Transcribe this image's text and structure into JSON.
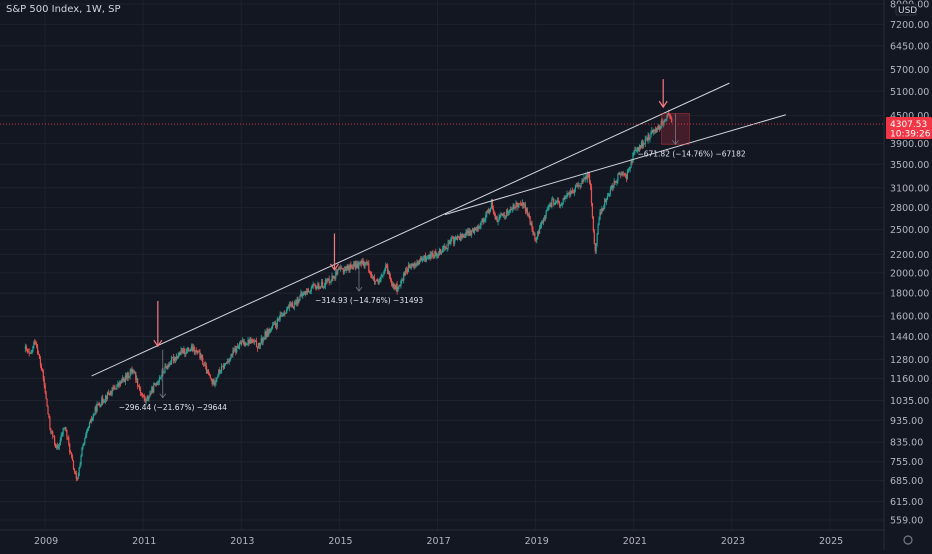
{
  "header": {
    "title": "S&P 500 Index, 1W, SP"
  },
  "colors": {
    "background": "#131722",
    "up": "#26a69a",
    "down": "#ef5350",
    "trendline": "#d1d4dc",
    "arrow": "#f77c80",
    "price_tag": "#f23645"
  },
  "chart_data": {
    "type": "candlestick",
    "title": "S&P 500 Index, 1W, SP",
    "currency": "USD",
    "y_scale": "log",
    "ylim": [
      540,
      8000
    ],
    "xlim": [
      2008.6,
      2026.0
    ],
    "x_ticks": [
      "2009",
      "2011",
      "2013",
      "2015",
      "2017",
      "2019",
      "2021",
      "2023",
      "2025"
    ],
    "y_ticks": [
      "8000.00",
      "7200.00",
      "6450.00",
      "5700.00",
      "5100.00",
      "4500.00",
      "3900.00",
      "3500.00",
      "3100.00",
      "2800.00",
      "2500.00",
      "2200.00",
      "2000.00",
      "1800.00",
      "1600.00",
      "1440.00",
      "1280.00",
      "1160.00",
      "1035.00",
      "935.00",
      "835.00",
      "755.00",
      "685.00",
      "615.00",
      "559.00"
    ],
    "current_price": {
      "value": "4307.53",
      "countdown": "10:39:26"
    },
    "price_path": [
      {
        "x": 2008.6,
        "y": 1350
      },
      {
        "x": 2008.7,
        "y": 1300
      },
      {
        "x": 2008.8,
        "y": 1420
      },
      {
        "x": 2008.9,
        "y": 1260
      },
      {
        "x": 2008.97,
        "y": 1150
      },
      {
        "x": 2009.1,
        "y": 900
      },
      {
        "x": 2009.25,
        "y": 800
      },
      {
        "x": 2009.4,
        "y": 910
      },
      {
        "x": 2009.55,
        "y": 760
      },
      {
        "x": 2009.65,
        "y": 676
      },
      {
        "x": 2009.75,
        "y": 800
      },
      {
        "x": 2009.9,
        "y": 910
      },
      {
        "x": 2010.05,
        "y": 1000
      },
      {
        "x": 2010.25,
        "y": 1060
      },
      {
        "x": 2010.45,
        "y": 1110
      },
      {
        "x": 2010.6,
        "y": 1150
      },
      {
        "x": 2010.8,
        "y": 1215
      },
      {
        "x": 2010.95,
        "y": 1080
      },
      {
        "x": 2011.05,
        "y": 1030
      },
      {
        "x": 2011.2,
        "y": 1100
      },
      {
        "x": 2011.4,
        "y": 1200
      },
      {
        "x": 2011.6,
        "y": 1280
      },
      {
        "x": 2011.8,
        "y": 1330
      },
      {
        "x": 2012.0,
        "y": 1350
      },
      {
        "x": 2012.15,
        "y": 1310
      },
      {
        "x": 2012.3,
        "y": 1200
      },
      {
        "x": 2012.42,
        "y": 1130
      },
      {
        "x": 2012.55,
        "y": 1200
      },
      {
        "x": 2012.7,
        "y": 1260
      },
      {
        "x": 2012.85,
        "y": 1330
      },
      {
        "x": 2013.0,
        "y": 1390
      },
      {
        "x": 2013.2,
        "y": 1410
      },
      {
        "x": 2013.35,
        "y": 1370
      },
      {
        "x": 2013.5,
        "y": 1460
      },
      {
        "x": 2013.7,
        "y": 1530
      },
      {
        "x": 2013.9,
        "y": 1650
      },
      {
        "x": 2014.05,
        "y": 1690
      },
      {
        "x": 2014.25,
        "y": 1790
      },
      {
        "x": 2014.45,
        "y": 1850
      },
      {
        "x": 2014.65,
        "y": 1880
      },
      {
        "x": 2014.85,
        "y": 1950
      },
      {
        "x": 2015.0,
        "y": 2020
      },
      {
        "x": 2015.2,
        "y": 2060
      },
      {
        "x": 2015.4,
        "y": 2090
      },
      {
        "x": 2015.55,
        "y": 2110
      },
      {
        "x": 2015.7,
        "y": 1920
      },
      {
        "x": 2015.8,
        "y": 1880
      },
      {
        "x": 2015.95,
        "y": 2060
      },
      {
        "x": 2016.08,
        "y": 1900
      },
      {
        "x": 2016.2,
        "y": 1830
      },
      {
        "x": 2016.35,
        "y": 2030
      },
      {
        "x": 2016.55,
        "y": 2090
      },
      {
        "x": 2016.75,
        "y": 2160
      },
      {
        "x": 2016.95,
        "y": 2200
      },
      {
        "x": 2017.1,
        "y": 2260
      },
      {
        "x": 2017.3,
        "y": 2360
      },
      {
        "x": 2017.5,
        "y": 2420
      },
      {
        "x": 2017.7,
        "y": 2470
      },
      {
        "x": 2017.9,
        "y": 2600
      },
      {
        "x": 2018.05,
        "y": 2750
      },
      {
        "x": 2018.1,
        "y": 2870
      },
      {
        "x": 2018.2,
        "y": 2620
      },
      {
        "x": 2018.35,
        "y": 2700
      },
      {
        "x": 2018.55,
        "y": 2800
      },
      {
        "x": 2018.7,
        "y": 2890
      },
      {
        "x": 2018.82,
        "y": 2750
      },
      {
        "x": 2018.93,
        "y": 2500
      },
      {
        "x": 2019.0,
        "y": 2360
      },
      {
        "x": 2019.15,
        "y": 2640
      },
      {
        "x": 2019.35,
        "y": 2900
      },
      {
        "x": 2019.5,
        "y": 2840
      },
      {
        "x": 2019.65,
        "y": 2990
      },
      {
        "x": 2019.8,
        "y": 3080
      },
      {
        "x": 2020.0,
        "y": 3230
      },
      {
        "x": 2020.08,
        "y": 3350
      },
      {
        "x": 2020.12,
        "y": 3100
      },
      {
        "x": 2020.18,
        "y": 2450
      },
      {
        "x": 2020.22,
        "y": 2230
      },
      {
        "x": 2020.3,
        "y": 2700
      },
      {
        "x": 2020.45,
        "y": 2950
      },
      {
        "x": 2020.6,
        "y": 3200
      },
      {
        "x": 2020.75,
        "y": 3350
      },
      {
        "x": 2020.85,
        "y": 3280
      },
      {
        "x": 2021.0,
        "y": 3700
      },
      {
        "x": 2021.2,
        "y": 3900
      },
      {
        "x": 2021.4,
        "y": 4150
      },
      {
        "x": 2021.55,
        "y": 4300
      },
      {
        "x": 2021.68,
        "y": 4480
      },
      {
        "x": 2021.72,
        "y": 4530
      },
      {
        "x": 2021.78,
        "y": 4307
      }
    ],
    "trend_lines": [
      {
        "from": {
          "x": 2009.95,
          "y": 1175
        },
        "to": {
          "x": 2022.95,
          "y": 5320
        }
      },
      {
        "from": {
          "x": 2017.15,
          "y": 2700
        },
        "to": {
          "x": 2024.1,
          "y": 4520
        }
      }
    ],
    "arrows": [
      {
        "x": 2011.3,
        "y_top": 1730,
        "y_tip": 1370
      },
      {
        "x": 2014.9,
        "y_top": 2450,
        "y_tip": 2030
      },
      {
        "x": 2021.6,
        "y_top": 5430,
        "y_tip": 4700
      }
    ],
    "measurements": [
      {
        "x": 2011.4,
        "y_from": 1345,
        "y_to": 1050,
        "label": "−296.44 (−21.67%) −29644"
      },
      {
        "x": 2015.4,
        "y_from": 2130,
        "y_to": 1820,
        "label": "−314.93 (−14.76%) −31493"
      },
      {
        "x": 2021.85,
        "y_from": 4550,
        "y_to": 3880,
        "label": "−671.82 (−14.76%) −67182"
      }
    ]
  }
}
